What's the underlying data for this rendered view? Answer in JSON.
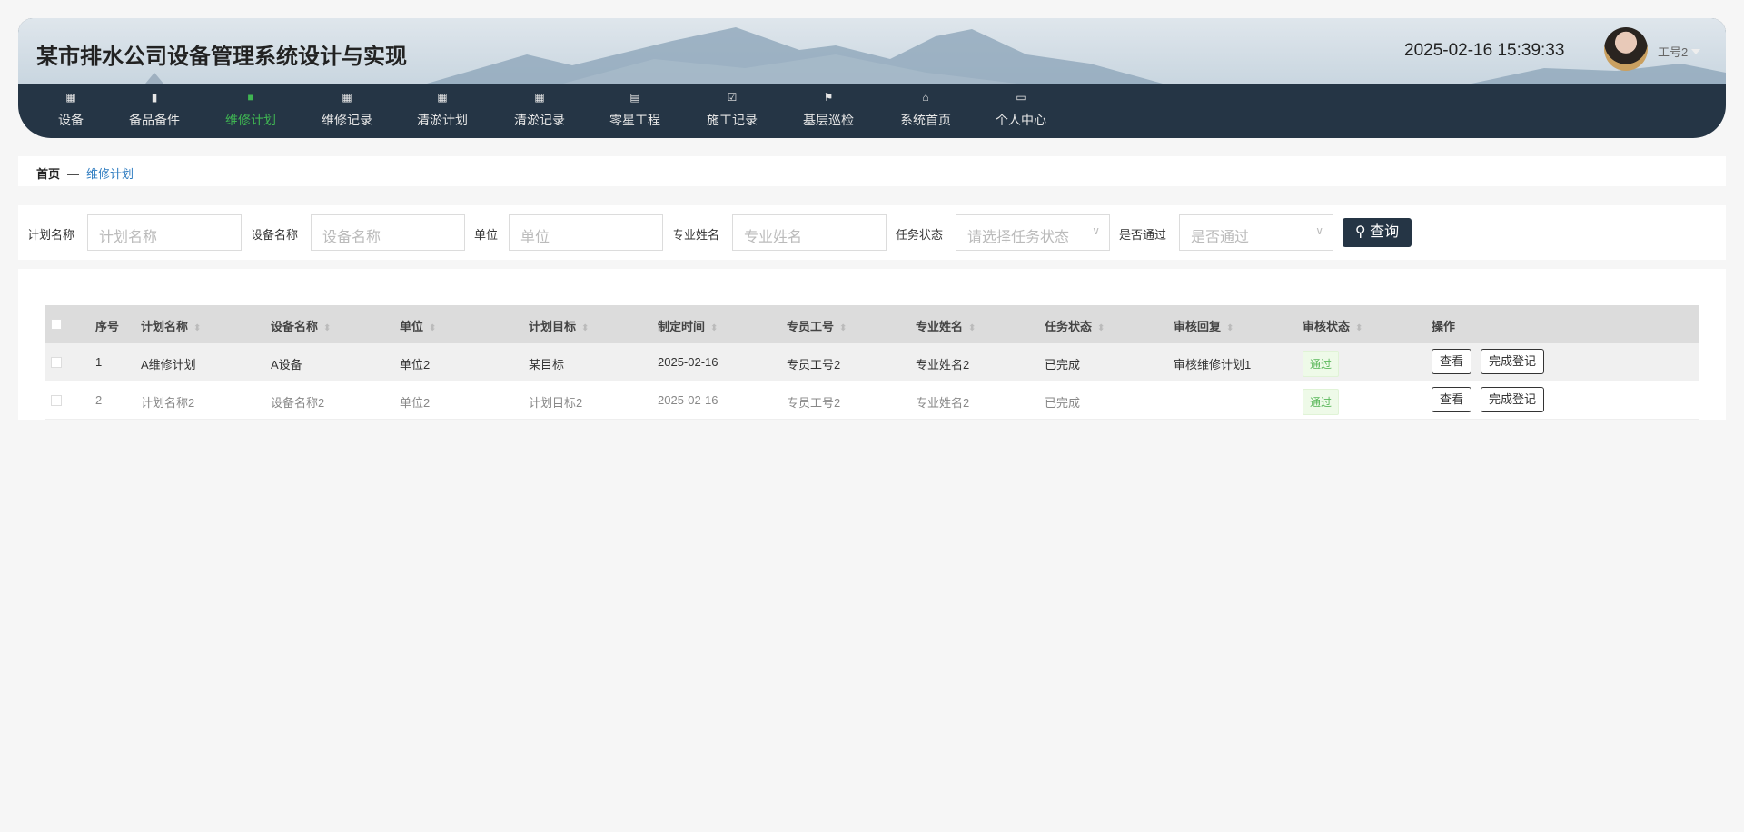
{
  "header": {
    "title": "某市排水公司设备管理系统设计与实现",
    "datetime": "2025-02-16 15:39:33",
    "user": "工号2"
  },
  "nav": [
    {
      "label": "设备",
      "icon": "grid-icon"
    },
    {
      "label": "备品备件",
      "icon": "book-icon"
    },
    {
      "label": "维修计划",
      "icon": "briefcase-icon",
      "active": true
    },
    {
      "label": "维修记录",
      "icon": "grid-icon"
    },
    {
      "label": "清淤计划",
      "icon": "grid-icon"
    },
    {
      "label": "清淤记录",
      "icon": "grid-icon"
    },
    {
      "label": "零星工程",
      "icon": "clipboard-icon"
    },
    {
      "label": "施工记录",
      "icon": "clipboard-check-icon"
    },
    {
      "label": "基层巡检",
      "icon": "flag-icon"
    },
    {
      "label": "系统首页",
      "icon": "home-icon"
    },
    {
      "label": "个人中心",
      "icon": "wallet-icon"
    }
  ],
  "breadcrumb": {
    "home": "首页",
    "sep": "—",
    "current": "维修计划"
  },
  "search": {
    "fields": [
      {
        "label": "计划名称",
        "placeholder": "计划名称"
      },
      {
        "label": "设备名称",
        "placeholder": "设备名称"
      },
      {
        "label": "单位",
        "placeholder": "单位"
      },
      {
        "label": "专业姓名",
        "placeholder": "专业姓名"
      },
      {
        "label": "任务状态",
        "placeholder": "请选择任务状态"
      },
      {
        "label": "是否通过",
        "placeholder": "是否通过"
      }
    ],
    "button": "查询"
  },
  "table": {
    "headers": [
      "序号",
      "计划名称",
      "设备名称",
      "单位",
      "计划目标",
      "制定时间",
      "专员工号",
      "专业姓名",
      "任务状态",
      "审核回复",
      "审核状态",
      "操作"
    ],
    "rows": [
      {
        "cells": [
          "1",
          "A维修计划",
          "A设备",
          "单位2",
          "某目标",
          "2025-02-16",
          "专员工号2",
          "专业姓名2",
          "已完成",
          "审核维修计划1"
        ],
        "status": "通过"
      },
      {
        "cells": [
          "2",
          "计划名称2",
          "设备名称2",
          "单位2",
          "计划目标2",
          "2025-02-16",
          "专员工号2",
          "专业姓名2",
          "已完成",
          ""
        ],
        "status": "通过"
      }
    ],
    "actions": {
      "view": "查看",
      "complete": "完成登记"
    }
  },
  "colors": {
    "nav_bg": "#253545",
    "active": "#3fb552",
    "link": "#2f7cc0",
    "badge": "#5cb85c"
  }
}
